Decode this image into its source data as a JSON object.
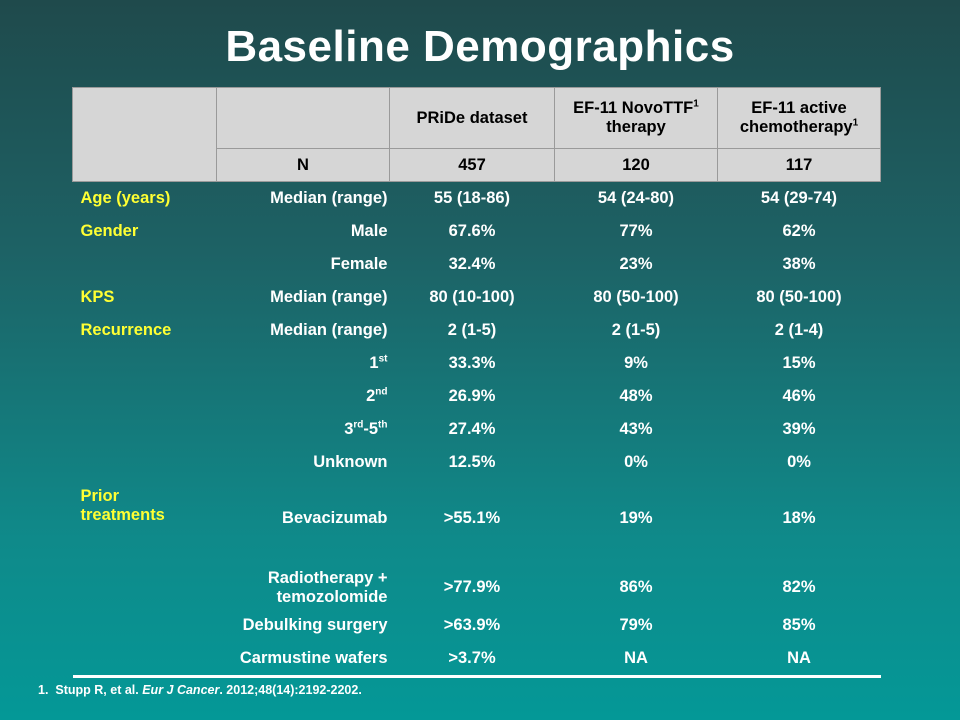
{
  "title": "Baseline Demographics",
  "header": {
    "col_pride": "PRiDe dataset",
    "col_ef11_novottf": "EF-11 NovoTTF",
    "col_ef11_novottf_sup": "1",
    "col_ef11_novottf_line2": "therapy",
    "col_ef11_chemo": "EF-11 active",
    "col_ef11_chemo_line2": "chemotherapy",
    "col_ef11_chemo_sup": "1",
    "n_label": "N",
    "n_pride": "457",
    "n_novottf": "120",
    "n_chemo": "117"
  },
  "rows": [
    {
      "category": "Age (years)",
      "sub": "Median (range)",
      "pride": "55 (18-86)",
      "novottf": "54 (24-80)",
      "chemo": "54 (29-74)"
    },
    {
      "category": "Gender",
      "sub": "Male",
      "pride": "67.6%",
      "novottf": "77%",
      "chemo": "62%"
    },
    {
      "category": "",
      "sub": "Female",
      "pride": "32.4%",
      "novottf": "23%",
      "chemo": "38%"
    },
    {
      "category": "KPS",
      "sub": "Median (range)",
      "pride": "80 (10-100)",
      "novottf": "80 (50-100)",
      "chemo": "80 (50-100)"
    },
    {
      "category": "Recurrence",
      "sub": "Median (range)",
      "pride": "2 (1-5)",
      "novottf": "2 (1-5)",
      "chemo": "2 (1-4)"
    },
    {
      "category": "",
      "sub": "1",
      "sub_sup": "st",
      "pride": "33.3%",
      "novottf": "9%",
      "chemo": "15%"
    },
    {
      "category": "",
      "sub": "2",
      "sub_sup": "nd",
      "pride": "26.9%",
      "novottf": "48%",
      "chemo": "46%"
    },
    {
      "category": "",
      "sub": "3",
      "sub_sup": "rd",
      "sub_mid": "-5",
      "sub_sup2": "th",
      "pride": "27.4%",
      "novottf": "43%",
      "chemo": "39%"
    },
    {
      "category": "",
      "sub": "Unknown",
      "pride": "12.5%",
      "novottf": "0%",
      "chemo": "0%"
    },
    {
      "category": "Prior",
      "category_line2": "treatments",
      "sub": "Bevacizumab",
      "pride": ">55.1%",
      "novottf": "19%",
      "chemo": "18%"
    },
    {
      "category": "",
      "sub": "Radiotherapy +",
      "sub_line2": "temozolomide",
      "pride": ">77.9%",
      "novottf": "86%",
      "chemo": "82%"
    },
    {
      "category": "",
      "sub": "Debulking surgery",
      "pride": ">63.9%",
      "novottf": "79%",
      "chemo": "85%"
    },
    {
      "category": "",
      "sub": "Carmustine wafers",
      "pride": ">3.7%",
      "novottf": "NA",
      "chemo": "NA"
    }
  ],
  "reference": {
    "number": "1.",
    "authors": "Stupp R, et al.",
    "journal": "Eur J Cancer",
    "citation": ". 2012;48(14):2192-2202."
  },
  "colors": {
    "category_text": "#ffff33",
    "header_bg": "#d6d6d6",
    "background_top": "#1f4a4c",
    "background_bottom": "#049897"
  }
}
